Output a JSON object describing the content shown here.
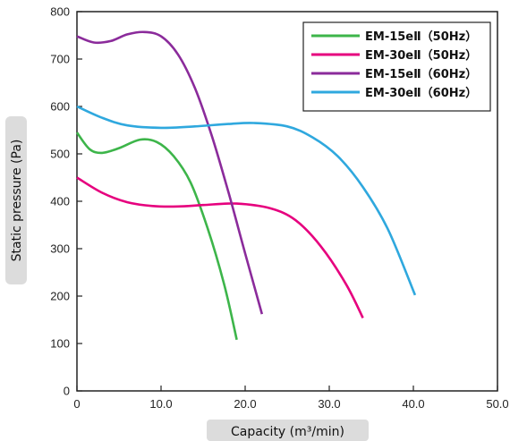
{
  "chart_data": {
    "type": "line",
    "xlabel": "Capacity (m³/min)",
    "ylabel": "Static pressure (Pa)",
    "xlim": [
      0,
      50
    ],
    "ylim": [
      0,
      800
    ],
    "x_ticks": [
      "0",
      "10.0",
      "20.0",
      "30.0",
      "40.0",
      "50.0"
    ],
    "y_ticks": [
      "0",
      "100",
      "200",
      "300",
      "400",
      "500",
      "600",
      "700",
      "800"
    ],
    "grid": false,
    "legend_position": "top-right",
    "series": [
      {
        "name": "EM-15eⅡ（50Hz）",
        "color": "#3db54a",
        "points": [
          [
            0,
            545
          ],
          [
            1.5,
            510
          ],
          [
            3,
            502
          ],
          [
            5,
            512
          ],
          [
            7.5,
            530
          ],
          [
            9.5,
            525
          ],
          [
            11.5,
            495
          ],
          [
            13.5,
            440
          ],
          [
            15.5,
            345
          ],
          [
            17.5,
            225
          ],
          [
            19.0,
            108
          ]
        ]
      },
      {
        "name": "EM-30eⅡ（50Hz）",
        "color": "#e6007e",
        "points": [
          [
            0,
            450
          ],
          [
            3,
            418
          ],
          [
            6,
            398
          ],
          [
            9,
            390
          ],
          [
            12,
            389
          ],
          [
            15,
            392
          ],
          [
            19,
            395
          ],
          [
            23,
            385
          ],
          [
            26,
            360
          ],
          [
            29,
            305
          ],
          [
            32,
            225
          ],
          [
            34.0,
            154
          ]
        ]
      },
      {
        "name": "EM-15eⅡ（60Hz）",
        "color": "#8b2b9b",
        "points": [
          [
            0,
            748
          ],
          [
            2,
            735
          ],
          [
            4,
            738
          ],
          [
            6,
            752
          ],
          [
            8,
            757
          ],
          [
            10,
            748
          ],
          [
            12,
            710
          ],
          [
            14,
            640
          ],
          [
            16,
            540
          ],
          [
            18,
            420
          ],
          [
            20,
            290
          ],
          [
            22.0,
            162
          ]
        ]
      },
      {
        "name": "EM-30eⅡ（60Hz）",
        "color": "#2fa8de",
        "points": [
          [
            0,
            600
          ],
          [
            3,
            576
          ],
          [
            6,
            560
          ],
          [
            10,
            555
          ],
          [
            14,
            558
          ],
          [
            18,
            563
          ],
          [
            21,
            565
          ],
          [
            25,
            558
          ],
          [
            28,
            535
          ],
          [
            31,
            495
          ],
          [
            34,
            430
          ],
          [
            37,
            340
          ],
          [
            40.2,
            202
          ]
        ]
      }
    ]
  }
}
